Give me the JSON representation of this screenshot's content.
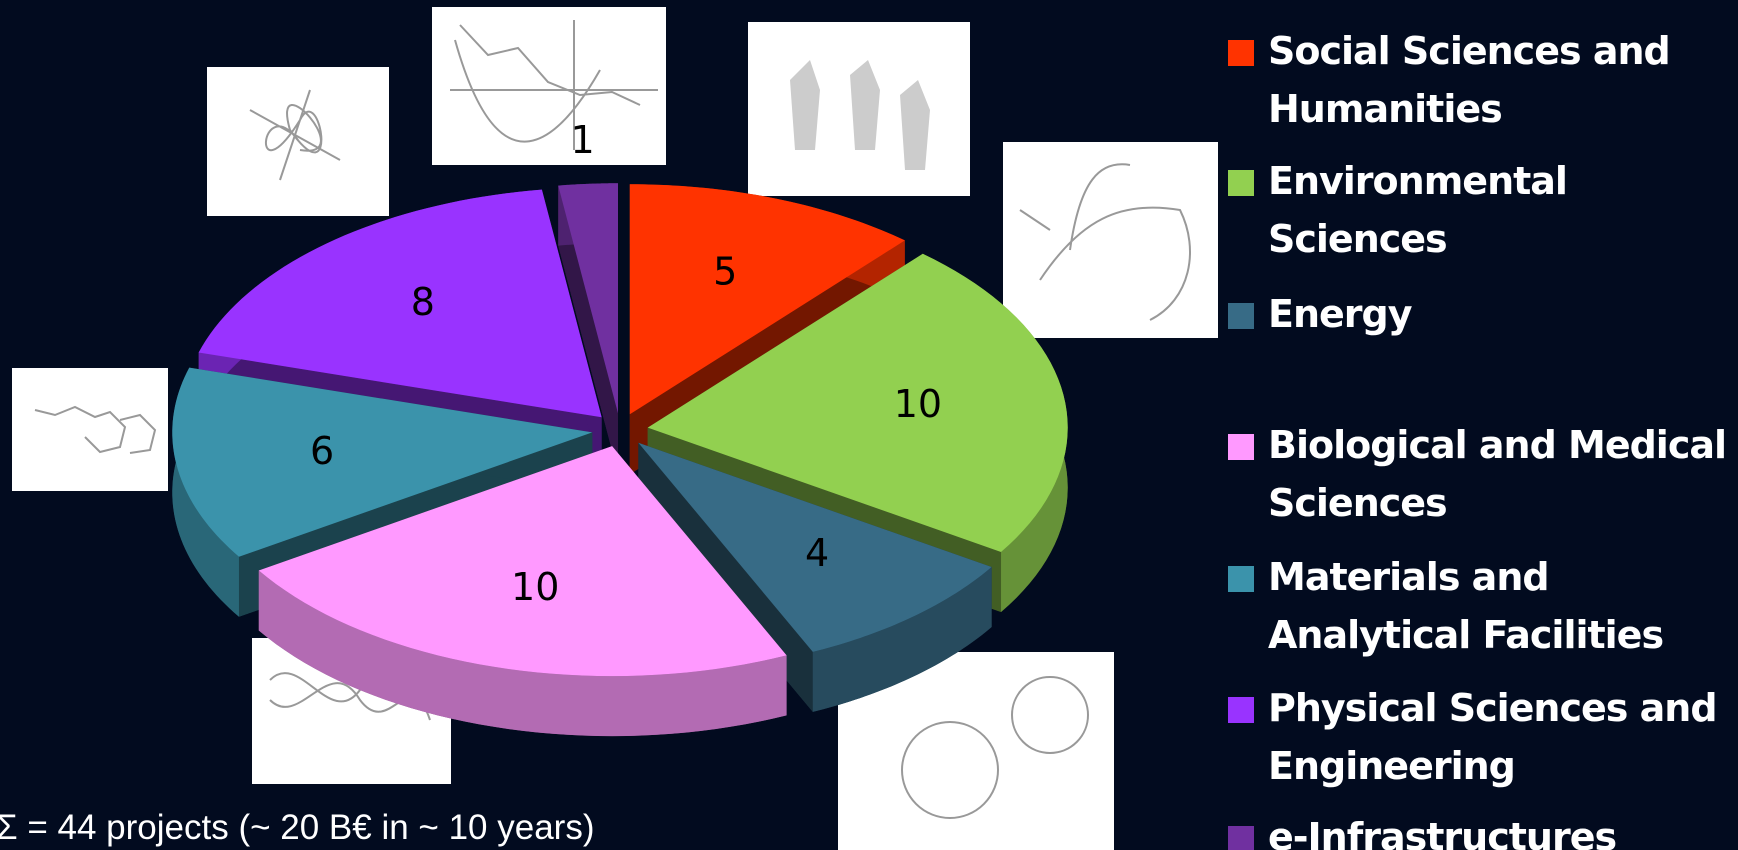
{
  "chart_data": {
    "type": "pie",
    "categories": [
      "Social Sciences and Humanities",
      "Environmental Sciences",
      "Energy",
      "Biological and Medical Sciences",
      "Materials and Analytical Facilities",
      "Physical Sciences and Engineering",
      "e-Infrastructures"
    ],
    "values": [
      5,
      10,
      4,
      10,
      6,
      8,
      1
    ],
    "colors": [
      "#ff3300",
      "#92d050",
      "#376b86",
      "#ff99ff",
      "#3b93ab",
      "#9933ff",
      "#7030a0"
    ],
    "note": "Σ = 44 projects (~ 20 B€ in ~ 10 years)"
  }
}
